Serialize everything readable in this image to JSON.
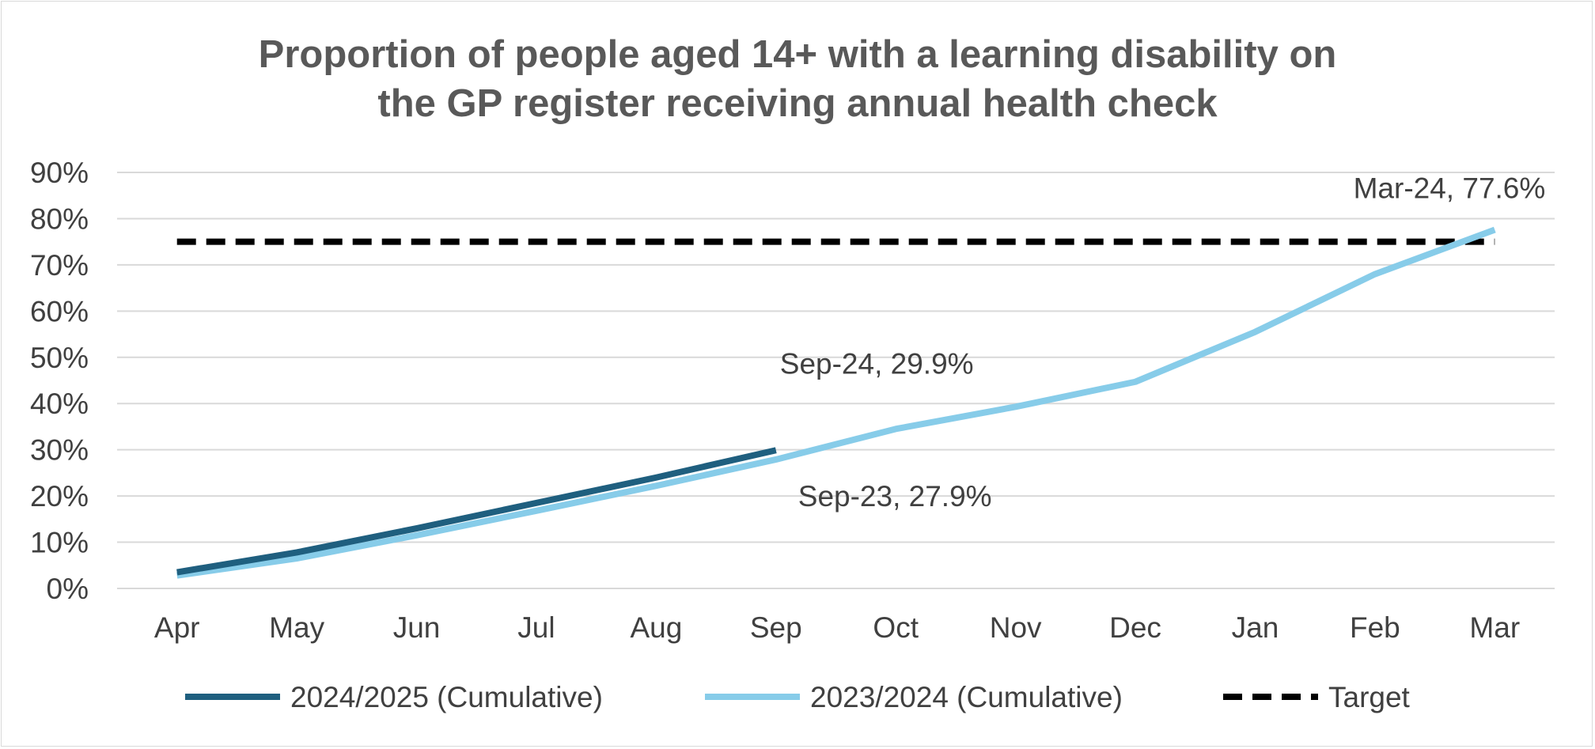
{
  "chart_data": {
    "type": "line",
    "title_lines": [
      "Proportion of people aged 14+ with a learning disability on",
      "the GP register receiving annual health check"
    ],
    "categories": [
      "Apr",
      "May",
      "Jun",
      "Jul",
      "Aug",
      "Sep",
      "Oct",
      "Nov",
      "Dec",
      "Jan",
      "Feb",
      "Mar"
    ],
    "y_ticks": [
      "0%",
      "10%",
      "20%",
      "30%",
      "40%",
      "50%",
      "60%",
      "70%",
      "80%",
      "90%"
    ],
    "ylim": [
      0,
      90
    ],
    "grid": true,
    "legend_position": "bottom",
    "series": [
      {
        "name": "2024/2025 (Cumulative)",
        "color": "#1f5f7f",
        "style": "solid",
        "values": [
          3.5,
          7.8,
          13.0,
          18.5,
          24.0,
          29.9,
          null,
          null,
          null,
          null,
          null,
          null
        ]
      },
      {
        "name": "2023/2024 (Cumulative)",
        "color": "#87cce9",
        "style": "solid",
        "values": [
          2.8,
          6.5,
          11.5,
          16.8,
          22.2,
          27.9,
          34.5,
          39.3,
          44.7,
          55.5,
          68.0,
          77.6
        ]
      },
      {
        "name": "Target",
        "color": "#000000",
        "style": "dashed",
        "values": [
          75,
          75,
          75,
          75,
          75,
          75,
          75,
          75,
          75,
          75,
          75,
          75
        ]
      }
    ],
    "annotations": [
      {
        "text": "Sep-24, 29.9%",
        "category": "Sep",
        "value": 29.9
      },
      {
        "text": "Sep-23, 27.9%",
        "category": "Sep",
        "value": 27.9
      },
      {
        "text": "Mar-24, 77.6%",
        "category": "Mar",
        "value": 77.6
      }
    ]
  }
}
